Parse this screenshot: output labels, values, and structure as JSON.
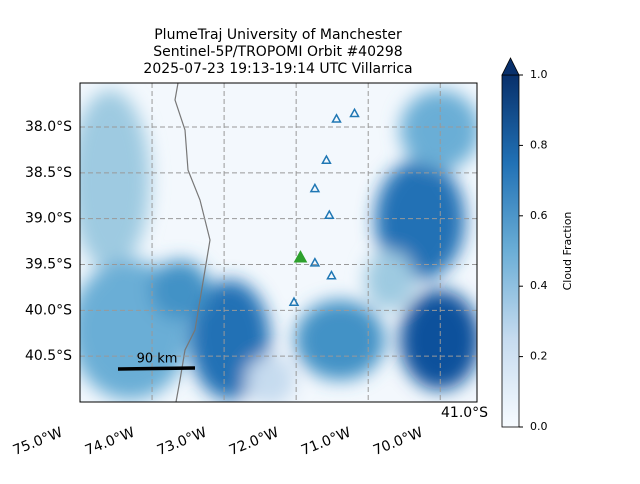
{
  "title": {
    "line1": "PlumeTraj    University of Manchester",
    "line2": "Sentinel-5P/TROPOMI Orbit #40298",
    "line3": "2025-07-23   19:13-19:14 UTC   Villarrica"
  },
  "map": {
    "xlim": [
      -75.0,
      -69.49
    ],
    "ylim": [
      -37.52,
      -41.0
    ],
    "lat_ticks": [
      {
        "value": -38.0,
        "label": "38.0°S"
      },
      {
        "value": -38.5,
        "label": "38.5°S"
      },
      {
        "value": -39.0,
        "label": "39.0°S"
      },
      {
        "value": -39.5,
        "label": "39.5°S"
      },
      {
        "value": -40.0,
        "label": "40.0°S"
      },
      {
        "value": -40.5,
        "label": "40.5°S"
      },
      {
        "value": -41.0,
        "label": "41.0°S"
      }
    ],
    "lon_ticks": [
      {
        "value": -75.0,
        "label": "75.0°W"
      },
      {
        "value": -74.0,
        "label": "74.0°W"
      },
      {
        "value": -73.0,
        "label": "73.0°W"
      },
      {
        "value": -72.0,
        "label": "72.0°W"
      },
      {
        "value": -71.0,
        "label": "71.0°W"
      },
      {
        "value": -70.0,
        "label": "70.0°W"
      }
    ],
    "volcanoes": [
      {
        "lon": -71.19,
        "lat": -37.85
      },
      {
        "lon": -71.44,
        "lat": -37.91
      },
      {
        "lon": -71.58,
        "lat": -38.36
      },
      {
        "lon": -71.74,
        "lat": -38.67
      },
      {
        "lon": -71.54,
        "lat": -38.96
      },
      {
        "lon": -71.74,
        "lat": -39.48
      },
      {
        "lon": -71.51,
        "lat": -39.62
      },
      {
        "lon": -72.03,
        "lat": -39.91
      }
    ],
    "target": {
      "lon": -71.94,
      "lat": -39.42
    }
  },
  "scale_bar": {
    "label": "90 km"
  },
  "colorbar": {
    "label": "Cloud Fraction",
    "lim": [
      0,
      1
    ],
    "ticks": [
      {
        "value": 0,
        "label": "0.0"
      },
      {
        "value": 0.2,
        "label": "0.2"
      },
      {
        "value": 0.4,
        "label": "0.4"
      },
      {
        "value": 0.6,
        "label": "0.6"
      },
      {
        "value": 0.8,
        "label": "0.8"
      },
      {
        "value": 1,
        "label": "1.0"
      }
    ]
  }
}
